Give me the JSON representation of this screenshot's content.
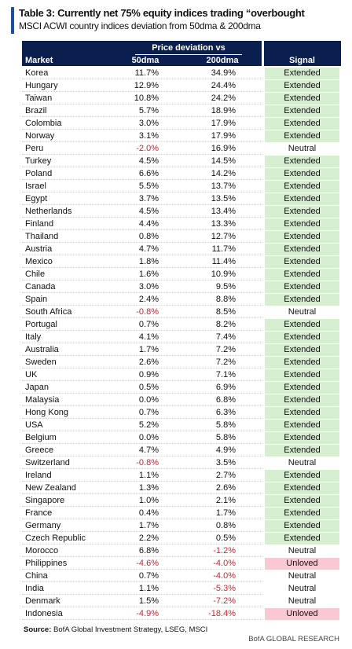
{
  "header": {
    "title": "Table 3: Currently net 75% equity indices trading “overbought",
    "subtitle": "MSCI ACWI country indices deviation from 50dma & 200dma"
  },
  "table": {
    "group_header": "Price deviation vs",
    "columns": [
      "Market",
      "50dma",
      "200dma",
      "Signal"
    ],
    "rows": [
      [
        "Korea",
        "11.7%",
        "34.9%",
        "Extended"
      ],
      [
        "Hungary",
        "12.9%",
        "24.4%",
        "Extended"
      ],
      [
        "Taiwan",
        "10.8%",
        "24.2%",
        "Extended"
      ],
      [
        "Brazil",
        "5.7%",
        "18.9%",
        "Extended"
      ],
      [
        "Colombia",
        "3.0%",
        "17.9%",
        "Extended"
      ],
      [
        "Norway",
        "3.1%",
        "17.9%",
        "Extended"
      ],
      [
        "Peru",
        "-2.0%",
        "16.9%",
        "Neutral"
      ],
      [
        "Turkey",
        "4.5%",
        "14.5%",
        "Extended"
      ],
      [
        "Poland",
        "6.6%",
        "14.2%",
        "Extended"
      ],
      [
        "Israel",
        "5.5%",
        "13.7%",
        "Extended"
      ],
      [
        "Egypt",
        "3.7%",
        "13.5%",
        "Extended"
      ],
      [
        "Netherlands",
        "4.5%",
        "13.4%",
        "Extended"
      ],
      [
        "Finland",
        "4.4%",
        "13.3%",
        "Extended"
      ],
      [
        "Thailand",
        "0.8%",
        "12.7%",
        "Extended"
      ],
      [
        "Austria",
        "4.7%",
        "11.7%",
        "Extended"
      ],
      [
        "Mexico",
        "1.8%",
        "11.4%",
        "Extended"
      ],
      [
        "Chile",
        "1.6%",
        "10.9%",
        "Extended"
      ],
      [
        "Canada",
        "3.0%",
        "9.5%",
        "Extended"
      ],
      [
        "Spain",
        "2.4%",
        "8.8%",
        "Extended"
      ],
      [
        "South Africa",
        "-0.8%",
        "8.5%",
        "Neutral"
      ],
      [
        "Portugal",
        "0.7%",
        "8.2%",
        "Extended"
      ],
      [
        "Italy",
        "4.1%",
        "7.4%",
        "Extended"
      ],
      [
        "Australia",
        "1.7%",
        "7.2%",
        "Extended"
      ],
      [
        "Sweden",
        "2.6%",
        "7.2%",
        "Extended"
      ],
      [
        "UK",
        "0.9%",
        "7.1%",
        "Extended"
      ],
      [
        "Japan",
        "0.5%",
        "6.9%",
        "Extended"
      ],
      [
        "Malaysia",
        "0.0%",
        "6.8%",
        "Extended"
      ],
      [
        "Hong Kong",
        "0.7%",
        "6.3%",
        "Extended"
      ],
      [
        "USA",
        "5.2%",
        "5.8%",
        "Extended"
      ],
      [
        "Belgium",
        "0.0%",
        "5.8%",
        "Extended"
      ],
      [
        "Greece",
        "4.7%",
        "4.9%",
        "Extended"
      ],
      [
        "Switzerland",
        "-0.8%",
        "3.5%",
        "Neutral"
      ],
      [
        "Ireland",
        "1.1%",
        "2.7%",
        "Extended"
      ],
      [
        "New Zealand",
        "1.3%",
        "2.6%",
        "Extended"
      ],
      [
        "Singapore",
        "1.0%",
        "2.1%",
        "Extended"
      ],
      [
        "France",
        "0.4%",
        "1.7%",
        "Extended"
      ],
      [
        "Germany",
        "1.7%",
        "0.8%",
        "Extended"
      ],
      [
        "Czech Republic",
        "2.2%",
        "0.5%",
        "Extended"
      ],
      [
        "Morocco",
        "6.8%",
        "-1.2%",
        "Neutral"
      ],
      [
        "Philippines",
        "-4.6%",
        "-4.0%",
        "Unloved"
      ],
      [
        "China",
        "0.7%",
        "-4.0%",
        "Neutral"
      ],
      [
        "India",
        "1.1%",
        "-5.3%",
        "Neutral"
      ],
      [
        "Denmark",
        "1.5%",
        "-7.2%",
        "Neutral"
      ],
      [
        "Indonesia",
        "-4.9%",
        "-18.4%",
        "Unloved"
      ]
    ],
    "signal_colors": {
      "Extended": "#d5efd0",
      "Unloved": "#f8c9d2"
    },
    "negative_color": "#e0202a"
  },
  "footer": {
    "source_label": "Source:",
    "source": "BofA Global Investment Strategy, LSEG, MSCI",
    "brand": "BofA GLOBAL RESEARCH"
  }
}
